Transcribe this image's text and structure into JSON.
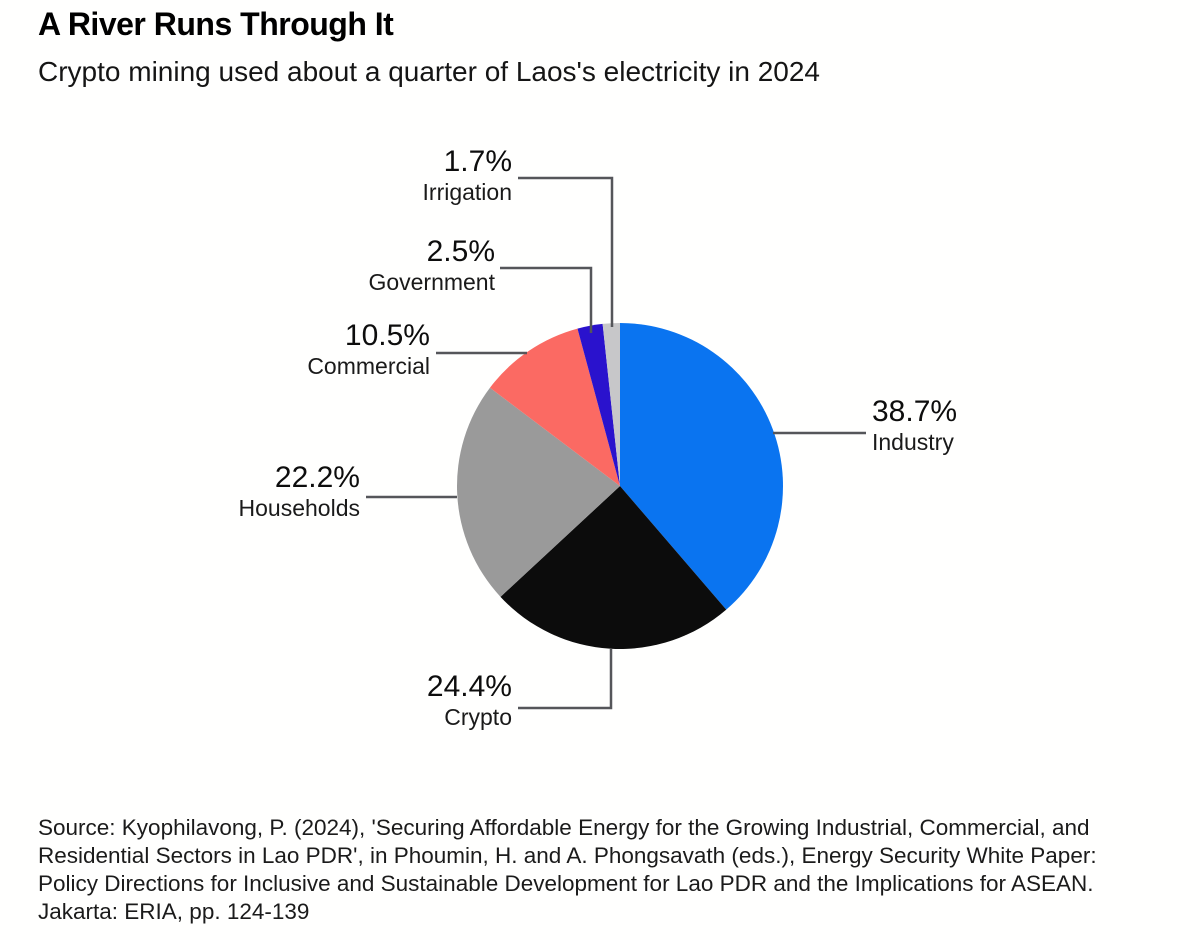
{
  "header": {
    "title": "A River Runs Through It",
    "subtitle": "Crypto mining used about a quarter of Laos's electricity in 2024"
  },
  "chart_data": {
    "type": "pie",
    "title": "A River Runs Through It",
    "subtitle": "Crypto mining used about a quarter of Laos's electricity in 2024",
    "unit": "%",
    "start_angle_deg": 0,
    "direction": "clockwise",
    "slices": [
      {
        "label": "Industry",
        "value": 38.7,
        "pct_label": "38.7%",
        "color": "#0a74f0"
      },
      {
        "label": "Crypto",
        "value": 24.4,
        "pct_label": "24.4%",
        "color": "#0c0c0c"
      },
      {
        "label": "Households",
        "value": 22.2,
        "pct_label": "22.2%",
        "color": "#9a9a9a"
      },
      {
        "label": "Commercial",
        "value": 10.5,
        "pct_label": "10.5%",
        "color": "#fb6a63"
      },
      {
        "label": "Government",
        "value": 2.5,
        "pct_label": "2.5%",
        "color": "#2a12cd"
      },
      {
        "label": "Irrigation",
        "value": 1.7,
        "pct_label": "1.7%",
        "color": "#c7c7c9"
      }
    ],
    "leader_line_color": "#55565a"
  },
  "source": {
    "lines": [
      "Source: Kyophilavong, P. (2024), 'Securing Affordable Energy for the Growing Industrial, Commercial, and",
      "Residential Sectors in Lao PDR', in Phoumin, H. and A. Phongsavath (eds.), Energy Security White Paper:",
      "Policy Directions for Inclusive and Sustainable Development for Lao PDR and the Implications for ASEAN.",
      "Jakarta: ERIA, pp. 124-139"
    ]
  }
}
